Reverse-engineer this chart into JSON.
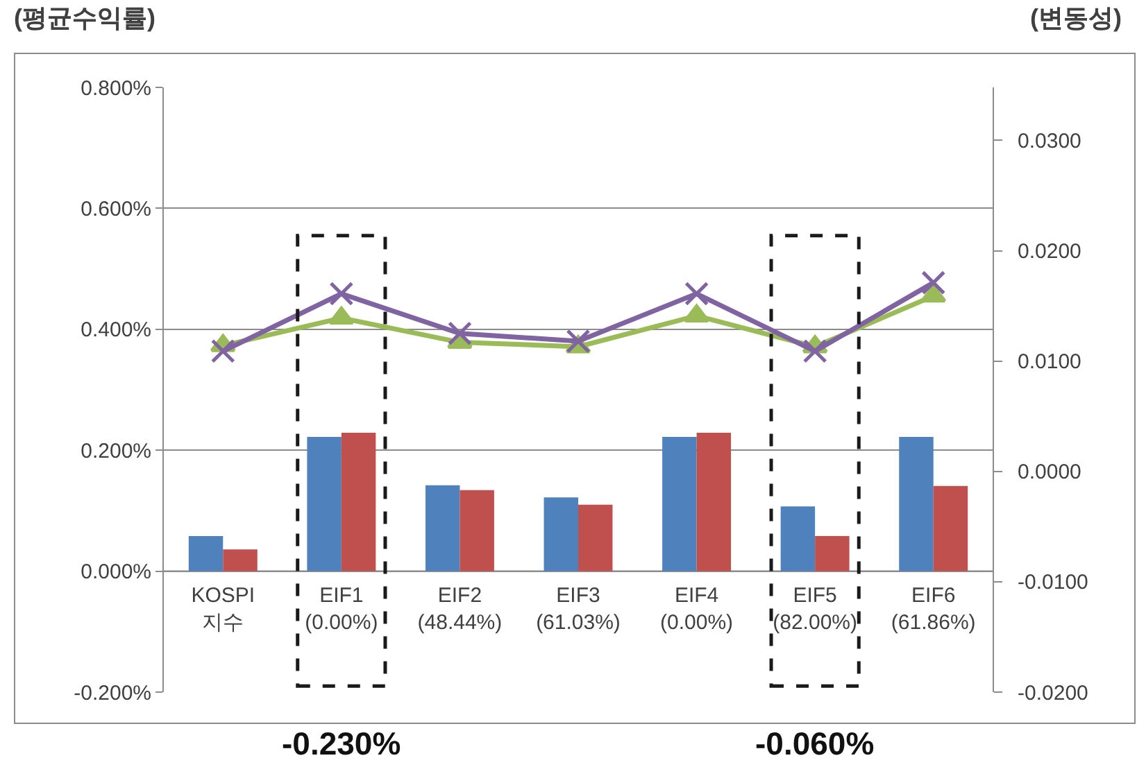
{
  "chart_data": {
    "type": "bar",
    "categories": [
      "KOSPI\n지수",
      "EIF1\n(0.00%)",
      "EIF2\n(48.44%)",
      "EIF3\n(61.03%)",
      "EIF4\n(0.00%)",
      "EIF5\n(82.00%)",
      "EIF6\n(61.86%)"
    ],
    "ylabel": "(평균수익률)",
    "y2label": "(변동성)",
    "series": [
      {
        "color": "#4f81bd",
        "values": [
          0.058,
          0.222,
          0.142,
          0.122,
          0.222,
          0.107,
          0.222
        ]
      },
      {
        "color": "#c0504d",
        "values": [
          0.036,
          0.229,
          0.134,
          0.11,
          0.229,
          0.058,
          0.141
        ]
      },
      {
        "type": "line",
        "axis": "y2",
        "color": "#9bbb59",
        "marker": "triangle",
        "values": [
          0.0114,
          0.0139,
          0.0117,
          0.0113,
          0.0141,
          0.0113,
          0.0159
        ]
      },
      {
        "type": "line",
        "axis": "y2",
        "color": "#8064a2",
        "marker": "cross",
        "values": [
          0.0109,
          0.0161,
          0.0125,
          0.0118,
          0.0161,
          0.0109,
          0.0171
        ]
      }
    ],
    "ylim": [
      -0.2,
      0.8
    ],
    "yticks": [
      {
        "value": -0.2,
        "label": "-0.200%"
      },
      {
        "value": 0,
        "label": "0.000%"
      },
      {
        "value": 0.2,
        "label": "0.200%"
      },
      {
        "value": 0.4,
        "label": "0.400%"
      },
      {
        "value": 0.6,
        "label": "0.600%"
      },
      {
        "value": 0.8,
        "label": "0.800%"
      }
    ],
    "y2lim": [
      -0.02,
      0.0348
    ],
    "y2ticks": [
      {
        "value": -0.02,
        "label": "-0.0200"
      },
      {
        "value": -0.01,
        "label": "-0.0100"
      },
      {
        "value": 0,
        "label": "0.0000"
      },
      {
        "value": 0.01,
        "label": "0.0100"
      },
      {
        "value": 0.02,
        "label": "0.0200"
      },
      {
        "value": 0.03,
        "label": "0.0300"
      }
    ],
    "grid": "y",
    "annotations": [
      "-0.230%",
      "-0.060%"
    ]
  }
}
